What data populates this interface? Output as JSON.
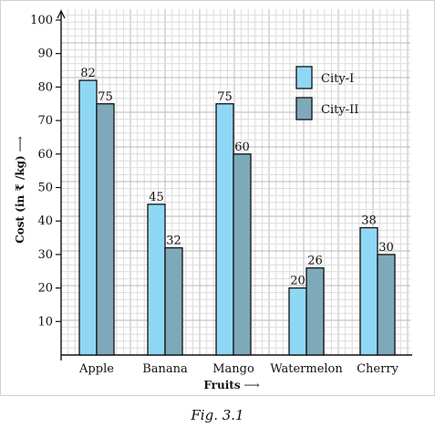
{
  "caption": "Fig. 3.1",
  "colors": {
    "series_1": "#8fd8f5",
    "series_2": "#7ea9bb",
    "grid_minor": "#dcdcdc",
    "grid_major": "#b8b8b8",
    "axis": "#111111",
    "frame": "#cfd2d4"
  },
  "chart_data": {
    "type": "bar",
    "categories": [
      "Apple",
      "Banana",
      "Mango",
      "Watermelon",
      "Cherry"
    ],
    "series": [
      {
        "name": "City-I",
        "values": [
          82,
          45,
          75,
          20,
          38
        ]
      },
      {
        "name": "City-II",
        "values": [
          75,
          32,
          60,
          26,
          30
        ]
      }
    ],
    "data_labels": [
      [
        "82",
        "45",
        "75",
        "20",
        "38"
      ],
      [
        "75",
        "32",
        "60",
        "26",
        "30"
      ]
    ],
    "yticks": [
      "10",
      "20",
      "30",
      "40",
      "50",
      "60",
      "70",
      "80",
      "90",
      "100"
    ],
    "xlabel": "Fruits",
    "xlabel_arrow": "⟶",
    "ylabel": "Cost (in ₹ /kg)",
    "ylabel_arrow": "⟶",
    "ylim": [
      0,
      100
    ],
    "grid": true,
    "legend_position": "top-right"
  }
}
